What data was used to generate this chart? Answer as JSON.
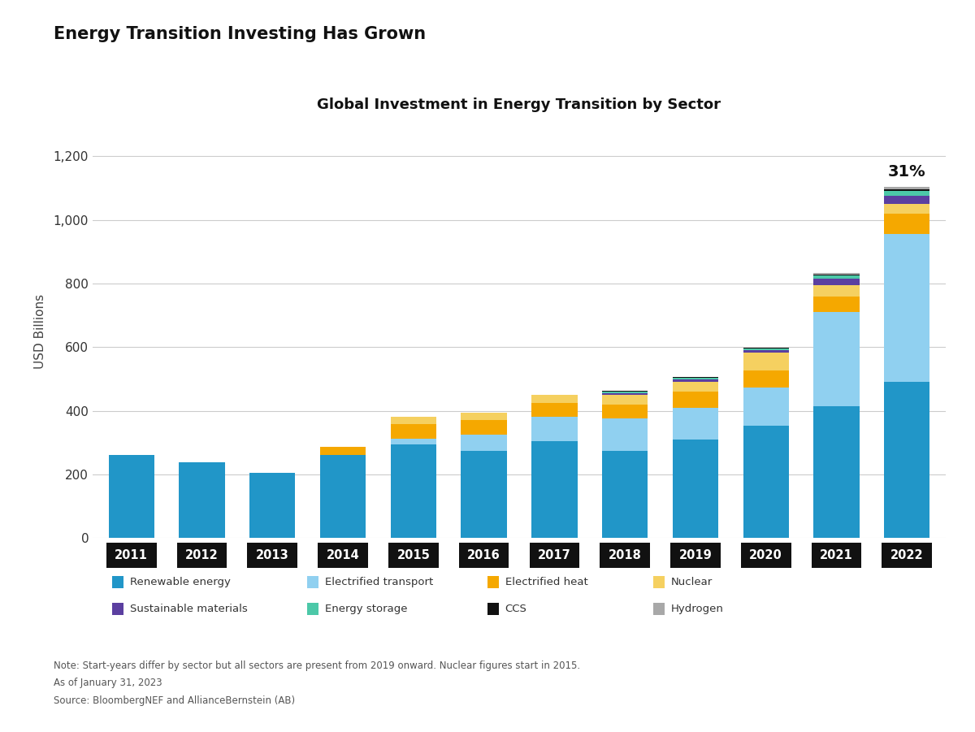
{
  "years": [
    "2011",
    "2012",
    "2013",
    "2014",
    "2015",
    "2016",
    "2017",
    "2018",
    "2019",
    "2020",
    "2021",
    "2022"
  ],
  "title_main": "Energy Transition Investing Has Grown",
  "title_chart": "Global Investment in Energy Transition by Sector",
  "ylabel": "USD Billions",
  "ylim": [
    0,
    1300
  ],
  "yticks": [
    0,
    200,
    400,
    600,
    800,
    1000,
    1200
  ],
  "annotation_2022": "31%",
  "sectors": {
    "Renewable energy": {
      "color": "#2196C8",
      "values": [
        261,
        238,
        206,
        261,
        293,
        275,
        305,
        275,
        310,
        352,
        415,
        490
      ]
    },
    "Electrified transport": {
      "color": "#90D0F0",
      "values": [
        0,
        0,
        0,
        0,
        20,
        50,
        75,
        100,
        100,
        120,
        295,
        466
      ]
    },
    "Electrified heat": {
      "color": "#F5A800",
      "values": [
        0,
        0,
        0,
        25,
        45,
        45,
        45,
        45,
        50,
        55,
        50,
        64
      ]
    },
    "Nuclear": {
      "color": "#F5D060",
      "values": [
        0,
        0,
        0,
        0,
        22,
        25,
        25,
        30,
        30,
        55,
        35,
        30
      ]
    },
    "Sustainable materials": {
      "color": "#5B3FA0",
      "values": [
        0,
        0,
        0,
        0,
        0,
        0,
        0,
        5,
        8,
        8,
        20,
        25
      ]
    },
    "Energy storage": {
      "color": "#4CC8A8",
      "values": [
        0,
        0,
        0,
        0,
        0,
        0,
        0,
        5,
        5,
        5,
        10,
        16
      ]
    },
    "CCS": {
      "color": "#111111",
      "values": [
        0,
        0,
        0,
        0,
        0,
        0,
        0,
        2,
        2,
        2,
        3,
        4
      ]
    },
    "Hydrogen": {
      "color": "#A8A8A8",
      "values": [
        0,
        0,
        0,
        0,
        0,
        0,
        0,
        0,
        2,
        2,
        5,
        8
      ]
    }
  },
  "note": "Note: Start-years differ by sector but all sectors are present from 2019 onward. Nuclear figures start in 2015.",
  "as_of": "As of January 31, 2023",
  "source": "Source: BloombergNEF and AllianceBernstein (AB)",
  "bg_color": "#FFFFFF",
  "bar_width": 0.65
}
